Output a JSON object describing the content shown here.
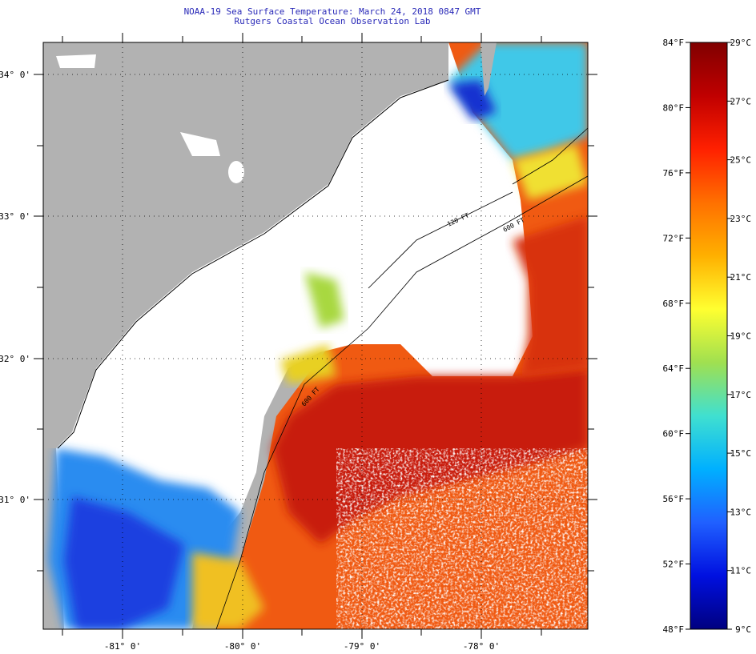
{
  "header": {
    "title": "NOAA-19 Sea Surface Temperature:  March 24, 2018 0847 GMT",
    "subtitle": "Rutgers Coastal Ocean Observation Lab"
  },
  "map": {
    "lon_labels": [
      "-81° 0'",
      "-80° 0'",
      "-79° 0'",
      "-78° 0'"
    ],
    "lat_labels": [
      "34° 0'",
      "33° 0'",
      "32° 0'",
      "31° 0'"
    ],
    "isobaths": [
      "120 FT",
      "600 FT",
      "600 FT"
    ],
    "colors": {
      "land": "#b2b2b2",
      "cloud": "#ffffff",
      "gulf_stream": "#c81a0a",
      "warm": "#ee3a10",
      "shelf_cool": "#2a8cf0",
      "coast_line": "#000000"
    }
  },
  "colorbar": {
    "fahrenheit_labels": [
      "84°F",
      "80°F",
      "76°F",
      "72°F",
      "68°F",
      "64°F",
      "60°F",
      "56°F",
      "52°F",
      "48°F"
    ],
    "celsius_labels": [
      "29°C",
      "27°C",
      "25°C",
      "23°C",
      "21°C",
      "19°C",
      "17°C",
      "15°C",
      "13°C",
      "11°C",
      "9°C"
    ],
    "gradient_stops": [
      "#800000",
      "#c00000",
      "#ff2000",
      "#ff7000",
      "#ffb000",
      "#ffff30",
      "#a0e050",
      "#40e0d0",
      "#00b0ff",
      "#2060ff",
      "#0010e0",
      "#000080"
    ]
  }
}
